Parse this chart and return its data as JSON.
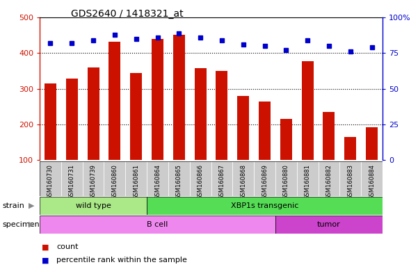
{
  "title": "GDS2640 / 1418321_at",
  "samples": [
    "GSM160730",
    "GSM160731",
    "GSM160739",
    "GSM160860",
    "GSM160861",
    "GSM160864",
    "GSM160865",
    "GSM160866",
    "GSM160867",
    "GSM160868",
    "GSM160869",
    "GSM160880",
    "GSM160881",
    "GSM160882",
    "GSM160883",
    "GSM160884"
  ],
  "counts": [
    315,
    328,
    360,
    432,
    345,
    440,
    452,
    358,
    350,
    280,
    265,
    216,
    377,
    235,
    165,
    193
  ],
  "percentiles": [
    82,
    82,
    84,
    88,
    85,
    86,
    89,
    86,
    84,
    81,
    80,
    77,
    84,
    80,
    76,
    79
  ],
  "ylim_left": [
    100,
    500
  ],
  "ylim_right": [
    0,
    100
  ],
  "yticks_left": [
    100,
    200,
    300,
    400,
    500
  ],
  "yticks_right": [
    0,
    25,
    50,
    75,
    100
  ],
  "bar_color": "#cc1100",
  "dot_color": "#0000cc",
  "tick_bg_color": "#cccccc",
  "strain_groups": [
    {
      "label": "wild type",
      "start": 0,
      "end": 5,
      "color": "#aae888"
    },
    {
      "label": "XBP1s transgenic",
      "start": 5,
      "end": 16,
      "color": "#55dd55"
    }
  ],
  "specimen_groups": [
    {
      "label": "B cell",
      "start": 0,
      "end": 11,
      "color": "#ee88ee"
    },
    {
      "label": "tumor",
      "start": 11,
      "end": 16,
      "color": "#cc44cc"
    }
  ],
  "legend": [
    {
      "label": "count",
      "color": "#cc1100"
    },
    {
      "label": "percentile rank within the sample",
      "color": "#0000cc"
    }
  ]
}
